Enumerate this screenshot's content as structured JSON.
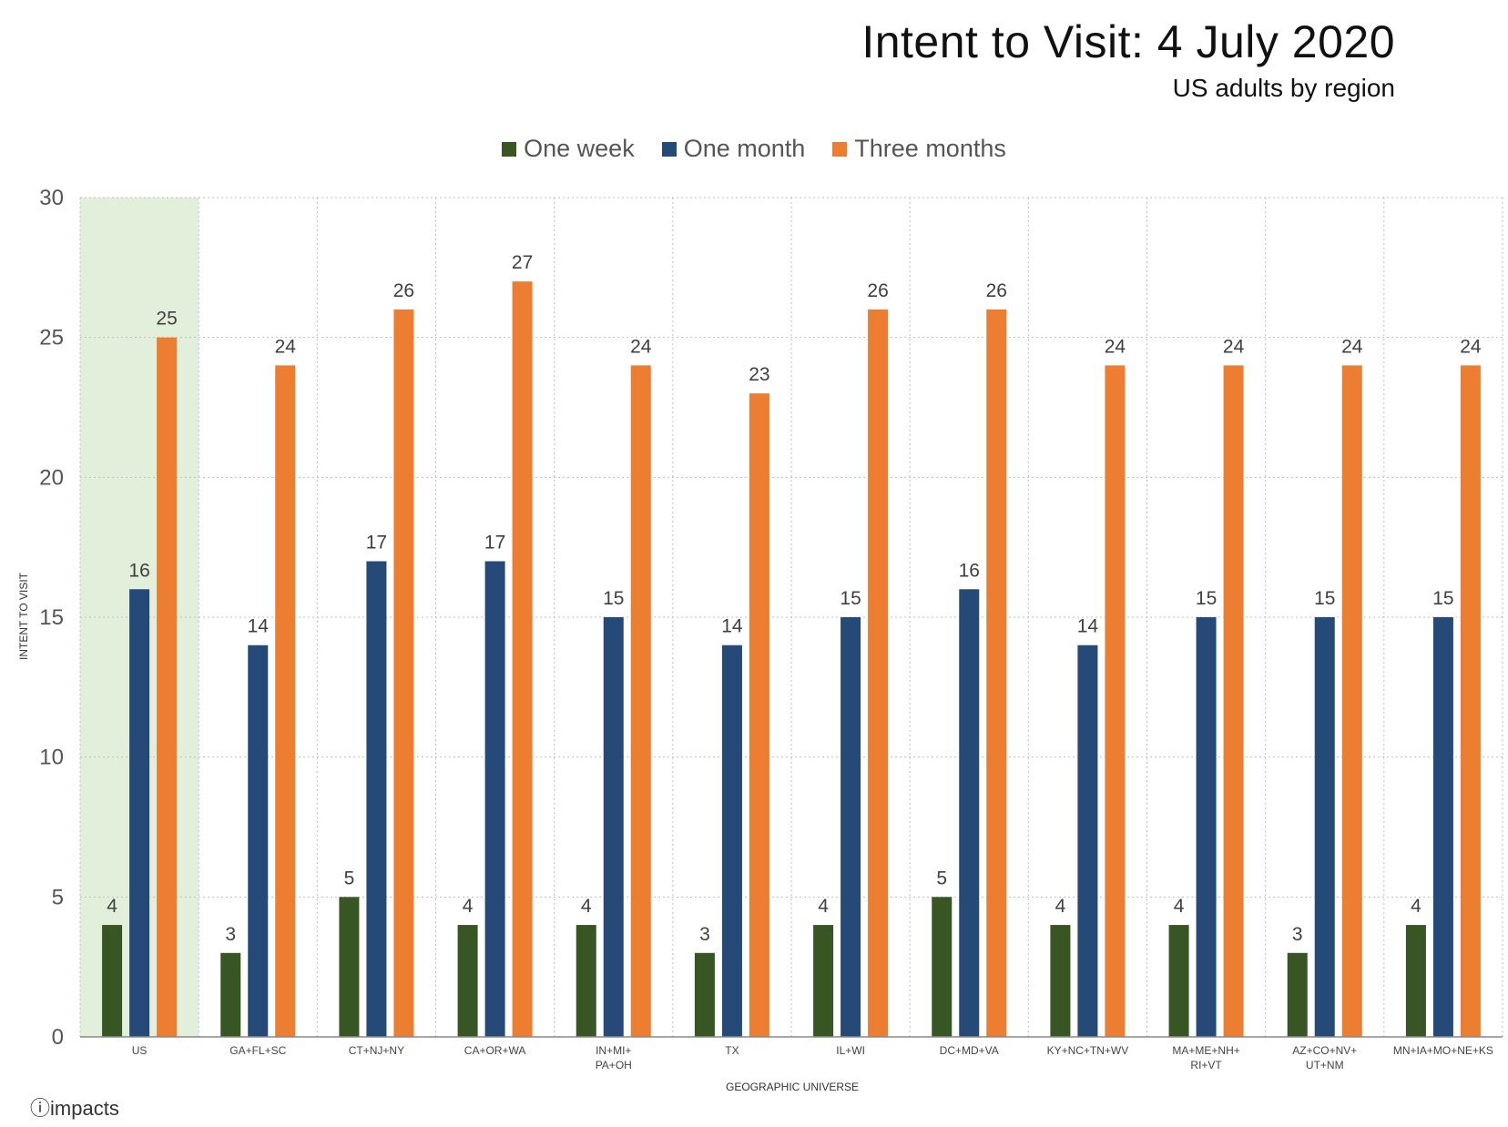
{
  "header": {
    "title": "Intent to Visit: 4 July 2020",
    "subtitle": "US adults by region"
  },
  "logo": {
    "text": "impacts",
    "icon": "info-circle-icon"
  },
  "colors": {
    "one_week": "#375623",
    "one_month": "#264a78",
    "three_months": "#ed7d31",
    "highlight": "#e2efda",
    "grid": "#bfbfbf"
  },
  "chart_data": {
    "type": "bar",
    "title": "Intent to Visit: 4 July 2020",
    "subtitle": "US adults by region",
    "xlabel": "GEOGRAPHIC UNIVERSE",
    "ylabel": "INTENT TO VISIT",
    "ylim": [
      0,
      30
    ],
    "yticks": [
      0,
      5,
      10,
      15,
      20,
      25,
      30
    ],
    "grid": true,
    "legend_position": "top-center",
    "highlighted_category": "US",
    "categories": [
      [
        "US"
      ],
      [
        "GA+FL+SC"
      ],
      [
        "CT+NJ+NY"
      ],
      [
        "CA+OR+WA"
      ],
      [
        "IN+MI+",
        "PA+OH"
      ],
      [
        "TX"
      ],
      [
        "IL+WI"
      ],
      [
        "DC+MD+VA"
      ],
      [
        "KY+NC+TN+WV"
      ],
      [
        "MA+ME+NH+",
        "RI+VT"
      ],
      [
        "AZ+CO+NV+",
        "UT+NM"
      ],
      [
        "MN+IA+MO+NE+KS"
      ]
    ],
    "series": [
      {
        "name": "One week",
        "color": "#375623",
        "values": [
          4,
          3,
          5,
          4,
          4,
          3,
          4,
          5,
          4,
          4,
          3,
          4
        ]
      },
      {
        "name": "One month",
        "color": "#264a78",
        "values": [
          16,
          14,
          17,
          17,
          15,
          14,
          15,
          16,
          14,
          15,
          15,
          15
        ]
      },
      {
        "name": "Three months",
        "color": "#ed7d31",
        "values": [
          25,
          24,
          26,
          27,
          24,
          23,
          26,
          26,
          24,
          24,
          24,
          24
        ]
      }
    ]
  }
}
